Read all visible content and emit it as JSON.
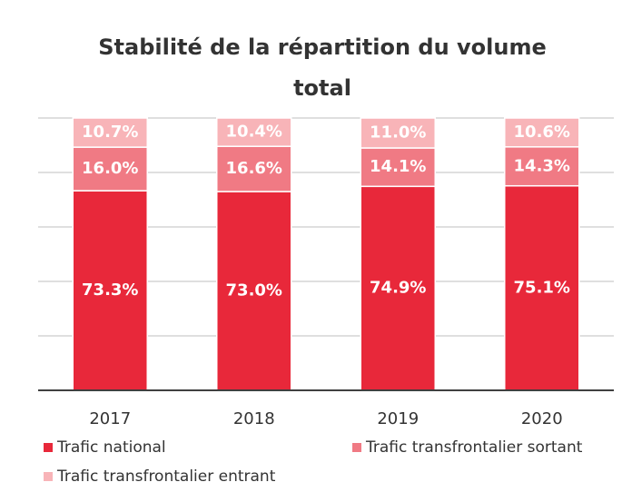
{
  "chart_data": {
    "type": "stacked_bar",
    "title": "Stabilité de la répartition du volume total",
    "categories": [
      "2017",
      "2018",
      "2019",
      "2020"
    ],
    "series": [
      {
        "name": "Trafic national",
        "color": "#e8283a",
        "values": [
          73.3,
          73.0,
          74.9,
          75.1
        ],
        "value_labels": [
          "73.3%",
          "73.0%",
          "74.9%",
          "75.1%"
        ]
      },
      {
        "name": "Trafic transfrontalier sortant",
        "color": "#f07a84",
        "values": [
          16.0,
          16.6,
          14.1,
          14.3
        ],
        "value_labels": [
          "16.0%",
          "16.6%",
          "14.1%",
          "14.3%"
        ]
      },
      {
        "name": "Trafic transfrontalier entrant",
        "color": "#f8b4b8",
        "values": [
          10.7,
          10.4,
          11.0,
          10.6
        ],
        "value_labels": [
          "10.7%",
          "10.4%",
          "11.0%",
          "10.6%"
        ]
      }
    ],
    "ylim": [
      0,
      100
    ],
    "yticks": [
      0,
      20,
      40,
      60,
      80,
      100
    ],
    "grid": true
  }
}
